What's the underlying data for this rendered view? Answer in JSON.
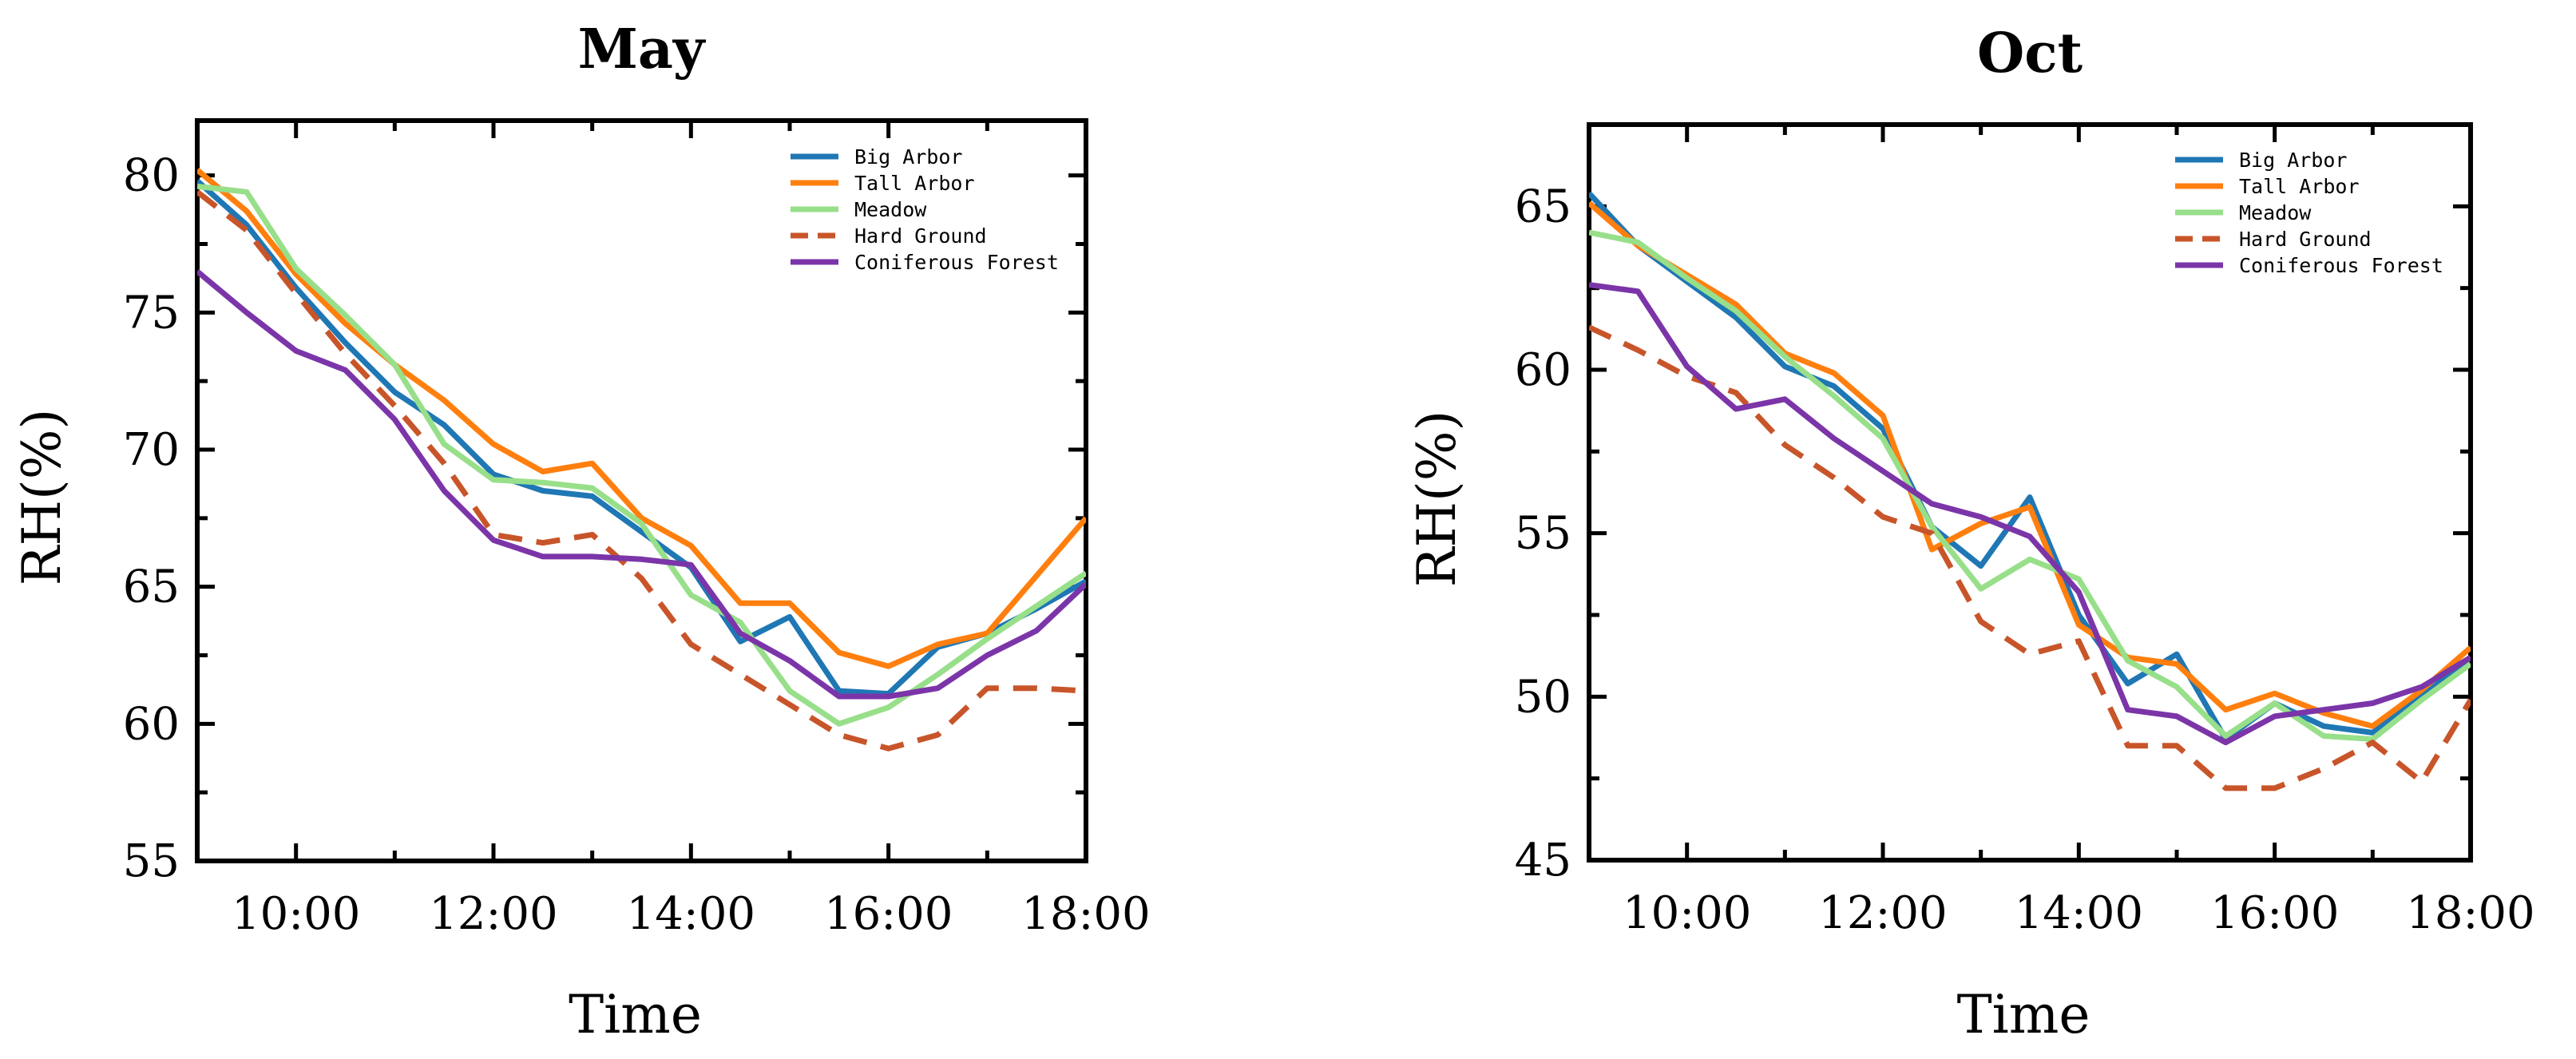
{
  "chart_data": [
    {
      "type": "line",
      "title": "May",
      "xlabel": "Time",
      "ylabel": "RH(%)",
      "xlim": [
        9,
        18
      ],
      "ylim": [
        55,
        82
      ],
      "x_ticks": [
        10,
        12,
        14,
        16,
        18
      ],
      "x_tick_labels": [
        "10:00",
        "12:00",
        "14:00",
        "16:00",
        "18:00"
      ],
      "y_ticks": [
        55,
        60,
        65,
        70,
        75,
        80
      ],
      "y_tick_labels": [
        "55",
        "60",
        "65",
        "70",
        "75",
        "80"
      ],
      "legend_position": "top-right",
      "x": [
        9,
        9.5,
        10,
        10.5,
        11,
        11.5,
        12,
        12.5,
        13,
        13.5,
        14,
        14.5,
        15,
        15.5,
        16,
        16.5,
        17,
        17.5,
        18
      ],
      "series": [
        {
          "name": "Big Arbor",
          "color": "#1f77b4",
          "style": "solid",
          "values": [
            79.8,
            78.2,
            75.9,
            73.9,
            72.1,
            70.9,
            69.1,
            68.5,
            68.3,
            67.0,
            65.7,
            63.0,
            63.9,
            61.2,
            61.1,
            62.8,
            63.3,
            64.2,
            65.2
          ]
        },
        {
          "name": "Tall Arbor",
          "color": "#ff7f0e",
          "style": "solid",
          "values": [
            80.2,
            78.7,
            76.4,
            74.6,
            73.1,
            71.8,
            70.2,
            69.2,
            69.5,
            67.5,
            66.5,
            64.4,
            64.4,
            62.6,
            62.1,
            62.9,
            63.3,
            65.4,
            67.5
          ]
        },
        {
          "name": "Meadow",
          "color": "#98df8a",
          "style": "solid",
          "values": [
            79.6,
            79.4,
            76.6,
            74.9,
            73.1,
            70.2,
            68.9,
            68.8,
            68.6,
            67.3,
            64.7,
            63.7,
            61.2,
            60.0,
            60.6,
            61.8,
            63.1,
            64.3,
            65.5
          ]
        },
        {
          "name": "Hard Ground",
          "color": "#c8552a",
          "style": "dashed",
          "values": [
            79.4,
            78.0,
            75.7,
            73.5,
            71.6,
            69.5,
            66.9,
            66.6,
            66.9,
            65.3,
            62.9,
            61.8,
            60.7,
            59.6,
            59.1,
            59.6,
            61.3,
            61.3,
            61.2
          ]
        },
        {
          "name": "Coniferous Forest",
          "color": "#7b35a8",
          "style": "solid",
          "values": [
            76.5,
            75.0,
            73.6,
            72.9,
            71.1,
            68.5,
            66.7,
            66.1,
            66.1,
            66.0,
            65.8,
            63.3,
            62.3,
            61.0,
            61.0,
            61.3,
            62.5,
            63.4,
            65.1
          ]
        }
      ]
    },
    {
      "type": "line",
      "title": "Oct",
      "xlabel": "Time",
      "ylabel": "RH(%)",
      "xlim": [
        9,
        18
      ],
      "ylim": [
        45,
        67.5
      ],
      "x_ticks": [
        10,
        12,
        14,
        16,
        18
      ],
      "x_tick_labels": [
        "10:00",
        "12:00",
        "14:00",
        "16:00",
        "18:00"
      ],
      "y_ticks": [
        45,
        50,
        55,
        60,
        65
      ],
      "y_tick_labels": [
        "45",
        "50",
        "55",
        "60",
        "65"
      ],
      "legend_position": "top-right",
      "x": [
        9,
        9.5,
        10,
        10.5,
        11,
        11.5,
        12,
        12.5,
        13,
        13.5,
        14,
        14.5,
        15,
        15.5,
        16,
        16.5,
        17,
        17.5,
        18
      ],
      "series": [
        {
          "name": "Big Arbor",
          "color": "#1f77b4",
          "style": "solid",
          "values": [
            65.4,
            63.8,
            62.7,
            61.6,
            60.1,
            59.5,
            58.2,
            55.2,
            54.0,
            56.1,
            52.5,
            50.4,
            51.3,
            48.7,
            49.8,
            49.1,
            48.9,
            50.0,
            51.2
          ]
        },
        {
          "name": "Tall Arbor",
          "color": "#ff7f0e",
          "style": "solid",
          "values": [
            65.1,
            63.8,
            62.9,
            62.0,
            60.5,
            59.9,
            58.6,
            54.5,
            55.3,
            55.8,
            52.2,
            51.2,
            51.0,
            49.6,
            50.1,
            49.5,
            49.1,
            50.2,
            51.5
          ]
        },
        {
          "name": "Meadow",
          "color": "#98df8a",
          "style": "solid",
          "values": [
            64.2,
            63.9,
            62.8,
            61.8,
            60.4,
            59.2,
            57.9,
            55.2,
            53.3,
            54.2,
            53.6,
            51.1,
            50.3,
            48.8,
            49.8,
            48.8,
            48.7,
            49.9,
            51.0
          ]
        },
        {
          "name": "Hard Ground",
          "color": "#c8552a",
          "style": "dashed",
          "values": [
            61.3,
            60.6,
            59.8,
            59.3,
            57.7,
            56.7,
            55.5,
            55.0,
            52.3,
            51.3,
            51.7,
            48.5,
            48.5,
            47.2,
            47.2,
            47.8,
            48.6,
            47.4,
            49.9
          ]
        },
        {
          "name": "Coniferous Forest",
          "color": "#7b35a8",
          "style": "solid",
          "values": [
            62.6,
            62.4,
            60.1,
            58.8,
            59.1,
            57.9,
            56.9,
            55.9,
            55.5,
            54.9,
            53.2,
            49.6,
            49.4,
            48.6,
            49.4,
            49.6,
            49.8,
            50.3,
            51.2
          ]
        }
      ]
    }
  ]
}
